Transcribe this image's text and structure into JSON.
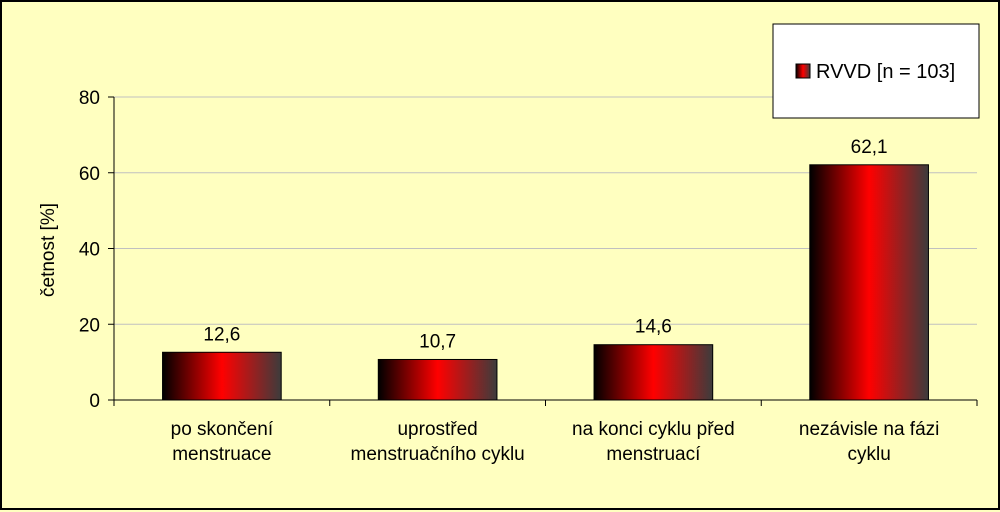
{
  "chart_data": {
    "type": "bar",
    "title": "",
    "xlabel": "",
    "ylabel": "četnost [%]",
    "ylim": [
      0,
      80
    ],
    "yticks": [
      0,
      20,
      40,
      60,
      80
    ],
    "grid": true,
    "legend_position": "top-right",
    "categories": [
      [
        "po skončení",
        "menstruace"
      ],
      [
        "uprostřed",
        "menstruačního cyklu"
      ],
      [
        "na konci cyklu před",
        "menstruací"
      ],
      [
        "nezávisle na fázi",
        "cyklu"
      ]
    ],
    "series": [
      {
        "name": "RVVD [n = 103]",
        "values": [
          12.6,
          10.7,
          14.6,
          62.1
        ],
        "value_labels": [
          "12,6",
          "10,7",
          "14,6",
          "62,1"
        ],
        "color": "#ff0000"
      }
    ]
  },
  "colors": {
    "background": "#ffffc0",
    "bar_dark": "#000000",
    "bar_mid": "#ff0000",
    "bar_edge": "#3c3c3c",
    "grid": "#c0c0c0"
  }
}
